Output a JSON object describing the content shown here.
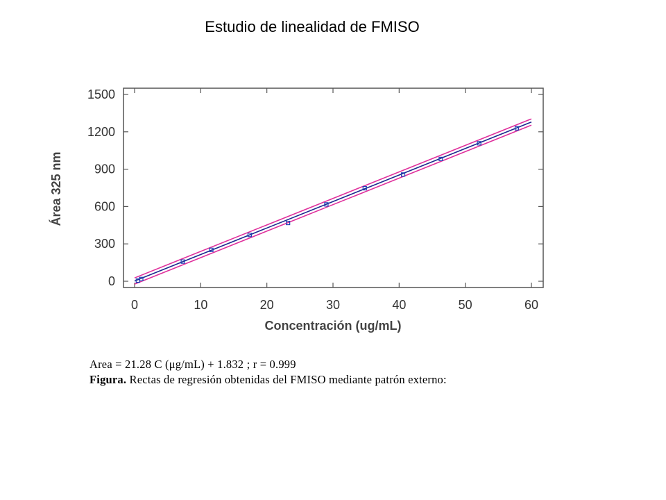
{
  "slide": {
    "title": "Estudio de linealidad de FMISO",
    "equation": "Area = 21.28 C (μg/mL) + 1.832 ; r = 0.999",
    "figure_label": "Figura.",
    "figure_caption": "Rectas de regresión obtenidas del FMISO mediante patrón externo:"
  },
  "chart_data": {
    "type": "scatter",
    "xlabel": "Concentración (ug/mL)",
    "ylabel": "Área 325 nm",
    "xlim": [
      0,
      60
    ],
    "ylim": [
      0,
      1500
    ],
    "xticks": [
      0,
      10,
      20,
      30,
      40,
      50,
      60
    ],
    "yticks": [
      0,
      300,
      600,
      900,
      1200,
      1500
    ],
    "grid": false,
    "series": [
      {
        "kind": "points",
        "color": "#1f3fb4",
        "x": [
          0.5,
          1.0,
          7.3,
          11.6,
          17.4,
          23.2,
          29.0,
          34.8,
          40.6,
          46.3,
          52.1,
          57.8
        ],
        "y": [
          5,
          18,
          158,
          252,
          372,
          468,
          617,
          747,
          857,
          982,
          1108,
          1228
        ]
      },
      {
        "kind": "fit",
        "color": "#1a2a8f",
        "slope": 21.28,
        "intercept": 1.832,
        "x_range": [
          0,
          60
        ]
      },
      {
        "kind": "band",
        "color": "#e0309c",
        "offset": 25,
        "x_range": [
          0,
          60
        ]
      }
    ]
  }
}
